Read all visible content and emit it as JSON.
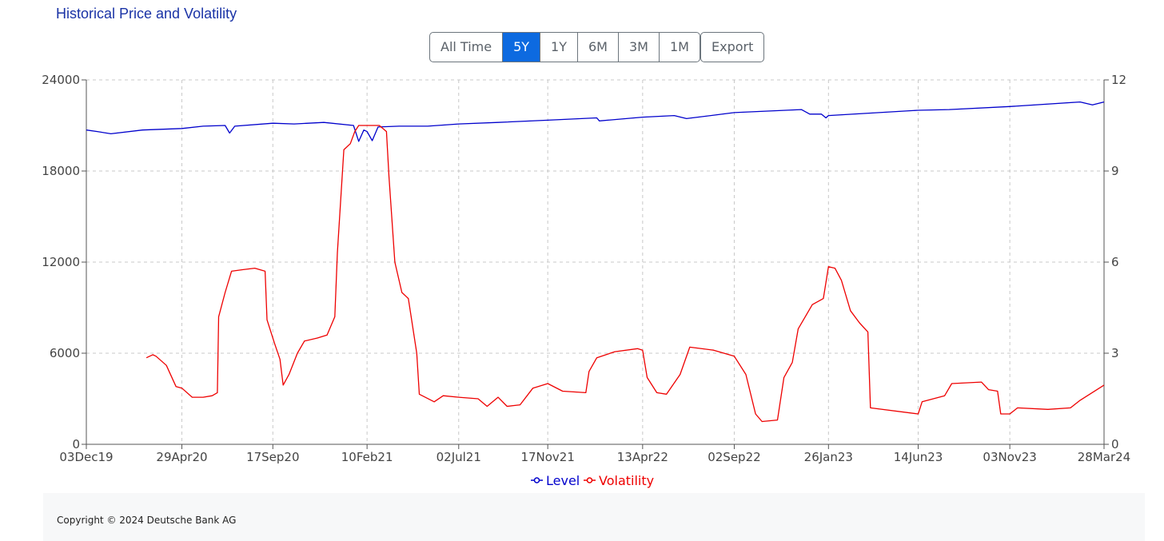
{
  "header": {
    "title": "Historical Price and Volatility"
  },
  "range_buttons": [
    {
      "label": "All Time",
      "active": false
    },
    {
      "label": "5Y",
      "active": true
    },
    {
      "label": "1Y",
      "active": false
    },
    {
      "label": "6M",
      "active": false
    },
    {
      "label": "3M",
      "active": false
    },
    {
      "label": "1M",
      "active": false
    }
  ],
  "export_label": "Export",
  "footer": {
    "copyright": "Copyright © 2024 Deutsche Bank AG"
  },
  "colors": {
    "level": "#0000cc",
    "volatility": "#ee0000",
    "grid": "#c8c8c8",
    "accent": "#0d6ae0"
  },
  "chart_data": {
    "type": "line",
    "title": "",
    "xlabel": "",
    "ylabel": "",
    "x_ticks": [
      "03Dec19",
      "29Apr20",
      "17Sep20",
      "10Feb21",
      "02Jul21",
      "17Nov21",
      "13Apr22",
      "02Sep22",
      "26Jan23",
      "14Jun23",
      "03Nov23",
      "28Mar24"
    ],
    "x_range": [
      "03Dec19",
      "28Mar24"
    ],
    "y_left": {
      "ticks": [
        "0",
        "6000",
        "12000",
        "18000",
        "24000"
      ],
      "range": [
        0,
        24000
      ]
    },
    "y_right": {
      "ticks": [
        "0",
        "3",
        "6",
        "9",
        "12"
      ],
      "range": [
        0,
        12
      ]
    },
    "grid": true,
    "legend_position": "bottom-center",
    "series": [
      {
        "name": "Level",
        "axis": "left",
        "points": [
          [
            "03Dec19",
            20700
          ],
          [
            "20Dec19",
            20600
          ],
          [
            "10Jan20",
            20450
          ],
          [
            "28Feb20",
            20700
          ],
          [
            "29Apr20",
            20800
          ],
          [
            "01Jun20",
            20950
          ],
          [
            "05Jul20",
            21000
          ],
          [
            "12Jul20",
            20500
          ],
          [
            "20Jul20",
            20950
          ],
          [
            "17Sep20",
            21150
          ],
          [
            "20Oct20",
            21100
          ],
          [
            "05Dec20",
            21200
          ],
          [
            "20Jan21",
            21000
          ],
          [
            "28Jan21",
            19950
          ],
          [
            "05Feb21",
            20700
          ],
          [
            "10Feb21",
            20600
          ],
          [
            "18Feb21",
            20000
          ],
          [
            "27Feb21",
            20900
          ],
          [
            "01Apr21",
            20950
          ],
          [
            "15May21",
            20950
          ],
          [
            "02Jul21",
            21100
          ],
          [
            "01Sep21",
            21200
          ],
          [
            "17Nov21",
            21350
          ],
          [
            "01Feb22",
            21500
          ],
          [
            "05Feb22",
            21300
          ],
          [
            "13Apr22",
            21550
          ],
          [
            "01Jun22",
            21650
          ],
          [
            "20Jun22",
            21450
          ],
          [
            "02Sep22",
            21850
          ],
          [
            "15Dec22",
            22050
          ],
          [
            "28Dec22",
            21750
          ],
          [
            "15Jan23",
            21750
          ],
          [
            "22Jan23",
            21500
          ],
          [
            "26Jan23",
            21650
          ],
          [
            "14Jun23",
            22000
          ],
          [
            "01Aug23",
            22050
          ],
          [
            "03Nov23",
            22250
          ],
          [
            "20Feb24",
            22550
          ],
          [
            "10Mar24",
            22350
          ],
          [
            "28Mar24",
            22550
          ]
        ]
      },
      {
        "name": "Volatility",
        "axis": "right",
        "points": [
          [
            "05Mar20",
            2.85
          ],
          [
            "15Mar20",
            2.95
          ],
          [
            "20Mar20",
            2.9
          ],
          [
            "05Apr20",
            2.6
          ],
          [
            "20Apr20",
            1.9
          ],
          [
            "29Apr20",
            1.85
          ],
          [
            "15May20",
            1.55
          ],
          [
            "01Jun20",
            1.55
          ],
          [
            "15Jun20",
            1.6
          ],
          [
            "23Jun20",
            1.7
          ],
          [
            "25Jun20",
            4.2
          ],
          [
            "05Jul20",
            5.0
          ],
          [
            "15Jul20",
            5.7
          ],
          [
            "01Aug20",
            5.75
          ],
          [
            "20Aug20",
            5.8
          ],
          [
            "05Sep20",
            5.7
          ],
          [
            "08Sep20",
            4.1
          ],
          [
            "20Sep20",
            3.3
          ],
          [
            "28Sep20",
            2.8
          ],
          [
            "03Oct20",
            1.95
          ],
          [
            "12Oct20",
            2.3
          ],
          [
            "25Oct20",
            3.0
          ],
          [
            "05Nov20",
            3.4
          ],
          [
            "25Nov20",
            3.5
          ],
          [
            "10Dec20",
            3.6
          ],
          [
            "22Dec20",
            4.2
          ],
          [
            "26Dec20",
            6.3
          ],
          [
            "05Jan21",
            9.7
          ],
          [
            "15Jan21",
            9.9
          ],
          [
            "22Jan21",
            10.3
          ],
          [
            "28Jan21",
            10.5
          ],
          [
            "15Feb21",
            10.5
          ],
          [
            "01Mar21",
            10.5
          ],
          [
            "12Mar21",
            10.3
          ],
          [
            "16Mar21",
            8.8
          ],
          [
            "25Mar21",
            6.0
          ],
          [
            "05Apr21",
            5.0
          ],
          [
            "15Apr21",
            4.8
          ],
          [
            "28Apr21",
            3.0
          ],
          [
            "02May21",
            1.65
          ],
          [
            "25May21",
            1.4
          ],
          [
            "08Jun21",
            1.6
          ],
          [
            "02Jul21",
            1.55
          ],
          [
            "01Aug21",
            1.5
          ],
          [
            "15Aug21",
            1.25
          ],
          [
            "01Sep21",
            1.55
          ],
          [
            "15Sep21",
            1.25
          ],
          [
            "05Oct21",
            1.3
          ],
          [
            "25Oct21",
            1.85
          ],
          [
            "17Nov21",
            2.0
          ],
          [
            "10Dec21",
            1.75
          ],
          [
            "15Jan22",
            1.7
          ],
          [
            "20Jan22",
            2.4
          ],
          [
            "01Feb22",
            2.85
          ],
          [
            "01Mar22",
            3.05
          ],
          [
            "05Apr22",
            3.15
          ],
          [
            "13Apr22",
            3.1
          ],
          [
            "20Apr22",
            2.2
          ],
          [
            "05May22",
            1.7
          ],
          [
            "20May22",
            1.65
          ],
          [
            "10Jun22",
            2.3
          ],
          [
            "25Jun22",
            3.2
          ],
          [
            "01Aug22",
            3.1
          ],
          [
            "02Sep22",
            2.9
          ],
          [
            "20Sep22",
            2.3
          ],
          [
            "05Oct22",
            1.0
          ],
          [
            "15Oct22",
            0.75
          ],
          [
            "08Nov22",
            0.8
          ],
          [
            "18Nov22",
            2.2
          ],
          [
            "01Dec22",
            2.7
          ],
          [
            "10Dec22",
            3.8
          ],
          [
            "01Jan23",
            4.6
          ],
          [
            "18Jan23",
            4.8
          ],
          [
            "26Jan23",
            5.85
          ],
          [
            "05Feb23",
            5.8
          ],
          [
            "15Feb23",
            5.4
          ],
          [
            "01Mar23",
            4.4
          ],
          [
            "15Mar23",
            4.0
          ],
          [
            "28Mar23",
            3.7
          ],
          [
            "01Apr23",
            1.2
          ],
          [
            "14Jun23",
            1.0
          ],
          [
            "20Jun23",
            1.4
          ],
          [
            "25Jul23",
            1.6
          ],
          [
            "05Aug23",
            2.0
          ],
          [
            "20Sep23",
            2.05
          ],
          [
            "01Oct23",
            1.8
          ],
          [
            "15Oct23",
            1.75
          ],
          [
            "20Oct23",
            1.0
          ],
          [
            "03Nov23",
            1.0
          ],
          [
            "15Nov23",
            1.2
          ],
          [
            "01Jan24",
            1.15
          ],
          [
            "05Feb24",
            1.2
          ],
          [
            "20Feb24",
            1.45
          ],
          [
            "28Mar24",
            1.95
          ]
        ]
      }
    ]
  }
}
